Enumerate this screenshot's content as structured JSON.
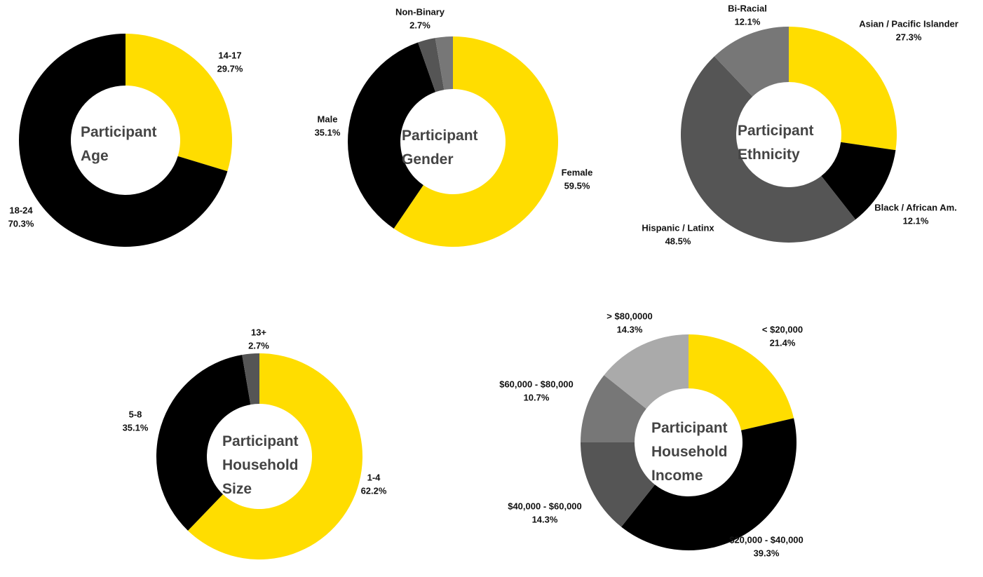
{
  "chart_data": [
    {
      "type": "pie",
      "title": "Participant Age",
      "categories": [
        "14-17",
        "18-24"
      ],
      "values": [
        29.7,
        70.3
      ],
      "value_labels": [
        "29.7%",
        "70.3%"
      ],
      "colors": [
        "#ffdd00",
        "#000000"
      ]
    },
    {
      "type": "pie",
      "title": "Participant Gender",
      "categories": [
        "Female",
        "Male",
        "Non-Binary",
        null
      ],
      "values": [
        59.5,
        35.1,
        2.7,
        2.7
      ],
      "value_labels": [
        "59.5%",
        "35.1%",
        "2.7%",
        null
      ],
      "colors": [
        "#ffdd00",
        "#000000",
        "#555555",
        "#777777"
      ]
    },
    {
      "type": "pie",
      "title": "Participant Ethnicity",
      "categories": [
        "Asian / Pacific Islander",
        "Black / African Am.",
        "Hispanic / Latinx",
        "Bi-Racial"
      ],
      "values": [
        27.3,
        12.1,
        48.5,
        12.1
      ],
      "value_labels": [
        "27.3%",
        "12.1%",
        "48.5%",
        "12.1%"
      ],
      "colors": [
        "#ffdd00",
        "#000000",
        "#555555",
        "#777777"
      ]
    },
    {
      "type": "pie",
      "title": "Participant Household Size",
      "categories": [
        "1-4",
        "5-8",
        "13+"
      ],
      "values": [
        62.2,
        35.1,
        2.7
      ],
      "value_labels": [
        "62.2%",
        "35.1%",
        "2.7%"
      ],
      "colors": [
        "#ffdd00",
        "#000000",
        "#555555"
      ]
    },
    {
      "type": "pie",
      "title": "Participant Household Income",
      "categories": [
        "< $20,000",
        "$20,000 - $40,000",
        "$40,000 - $60,000",
        "$60,000 - $80,000",
        "> $80,0000"
      ],
      "values": [
        21.4,
        39.3,
        14.3,
        10.7,
        14.3
      ],
      "value_labels": [
        "21.4%",
        "39.3%",
        "14.3%",
        "10.7%",
        "14.3%"
      ],
      "colors": [
        "#ffdd00",
        "#000000",
        "#555555",
        "#777777",
        "#aaaaaa"
      ]
    }
  ]
}
